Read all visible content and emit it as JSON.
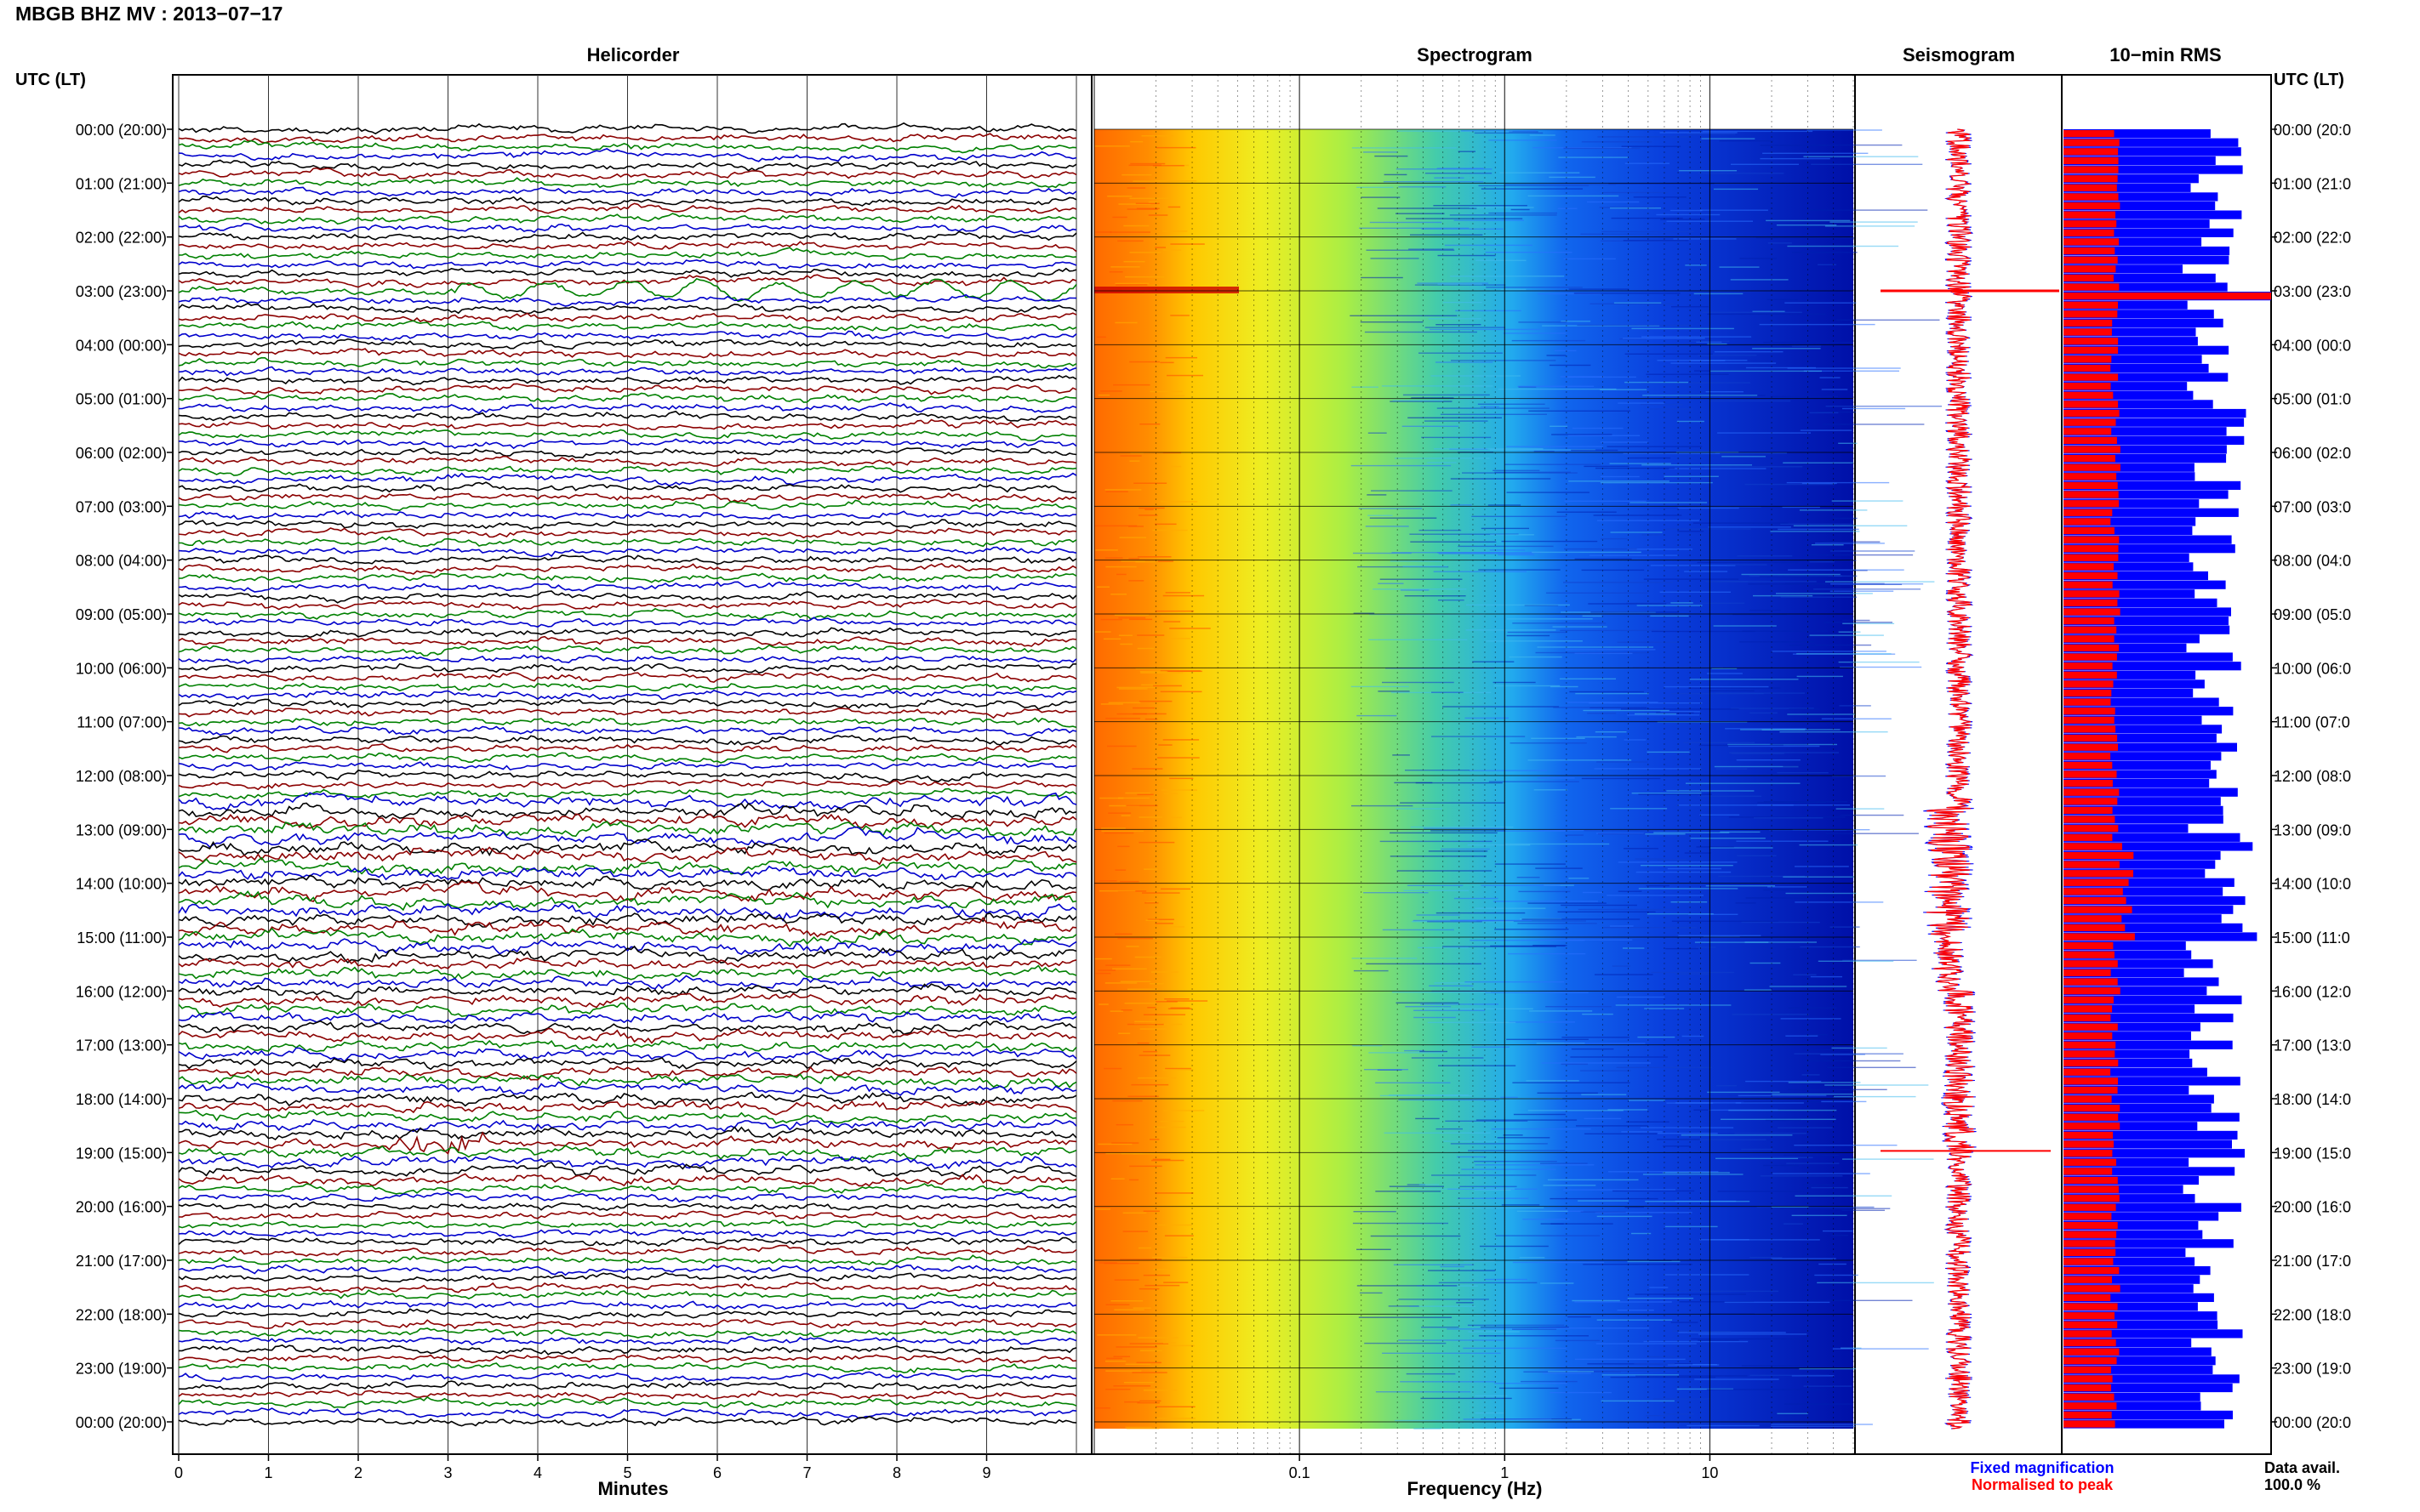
{
  "header": {
    "title": "MBGB BHZ MV : 2013−07−17",
    "utc_label_left": "UTC (LT)",
    "utc_label_right": "UTC (LT)"
  },
  "panels": {
    "helicorder": "Helicorder",
    "spectrogram": "Spectrogram",
    "seismogram": "Seismogram",
    "rms": "10−min RMS"
  },
  "time_labels_left": [
    "00:00 (20:00)",
    "01:00 (21:00)",
    "02:00 (22:00)",
    "03:00 (23:00)",
    "04:00 (00:00)",
    "05:00 (01:00)",
    "06:00 (02:00)",
    "07:00 (03:00)",
    "08:00 (04:00)",
    "09:00 (05:00)",
    "10:00 (06:00)",
    "11:00 (07:00)",
    "12:00 (08:00)",
    "13:00 (09:00)",
    "14:00 (10:00)",
    "15:00 (11:00)",
    "16:00 (12:00)",
    "17:00 (13:00)",
    "18:00 (14:00)",
    "19:00 (15:00)",
    "20:00 (16:00)",
    "21:00 (17:00)",
    "22:00 (18:00)",
    "23:00 (19:00)",
    "00:00 (20:00)"
  ],
  "time_labels_right": [
    "00:00 (20:0",
    "01:00 (21:0",
    "02:00 (22:0",
    "03:00 (23:0",
    "04:00 (00:0",
    "05:00 (01:0",
    "06:00 (02:0",
    "07:00 (03:0",
    "08:00 (04:0",
    "09:00 (05:0",
    "10:00 (06:0",
    "11:00 (07:0",
    "12:00 (08:0",
    "13:00 (09:0",
    "14:00 (10:0",
    "15:00 (11:0",
    "16:00 (12:0",
    "17:00 (13:0",
    "18:00 (14:0",
    "19:00 (15:0",
    "20:00 (16:0",
    "21:00 (17:0",
    "22:00 (18:0",
    "23:00 (19:0",
    "00:00 (20:0"
  ],
  "legend": {
    "fixed": "Fixed magnification",
    "normalised": "Normalised to peak",
    "fixed_color": "#0000ff",
    "normalised_color": "#ff0000",
    "data_avail_label": "Data avail.",
    "data_avail_value": "100.0 %"
  },
  "chart_data": [
    {
      "type": "line",
      "title": "Helicorder",
      "xlabel": "Minutes",
      "ylabel": "UTC (LT)",
      "xlim": [
        0,
        10
      ],
      "x_ticks": [
        "0",
        "1",
        "2",
        "3",
        "4",
        "5",
        "6",
        "7",
        "8",
        "9"
      ],
      "rows_per_hour": 6,
      "trace_colors": [
        "#000000",
        "#8b0000",
        "#008000",
        "#0000cc"
      ],
      "events": [
        {
          "time_utc": "03:00",
          "description_visible": "large oscillation"
        },
        {
          "time_utc": "19:00",
          "description_visible": "spike"
        }
      ],
      "grid": true
    },
    {
      "type": "heatmap",
      "title": "Spectrogram",
      "xlabel": "Frequency (Hz)",
      "x_scale": "log",
      "xlim": [
        0.01,
        50
      ],
      "x_ticks": [
        "0.1",
        "1",
        "10"
      ],
      "colormap": [
        "#ff6600",
        "#ffcc00",
        "#ccee22",
        "#33ccee",
        "#0055ee",
        "#0000aa"
      ],
      "grid": true
    },
    {
      "type": "line",
      "title": "Seismogram",
      "series": [
        {
          "name": "Fixed magnification",
          "color": "#0000ff"
        },
        {
          "name": "Normalised to peak",
          "color": "#ff0000"
        }
      ]
    },
    {
      "type": "bar",
      "title": "10−min RMS",
      "orientation": "horizontal",
      "series": [
        {
          "name": "Fixed magnification",
          "color": "#0000ff"
        },
        {
          "name": "Normalised to peak",
          "color": "#ff0000"
        }
      ]
    }
  ]
}
